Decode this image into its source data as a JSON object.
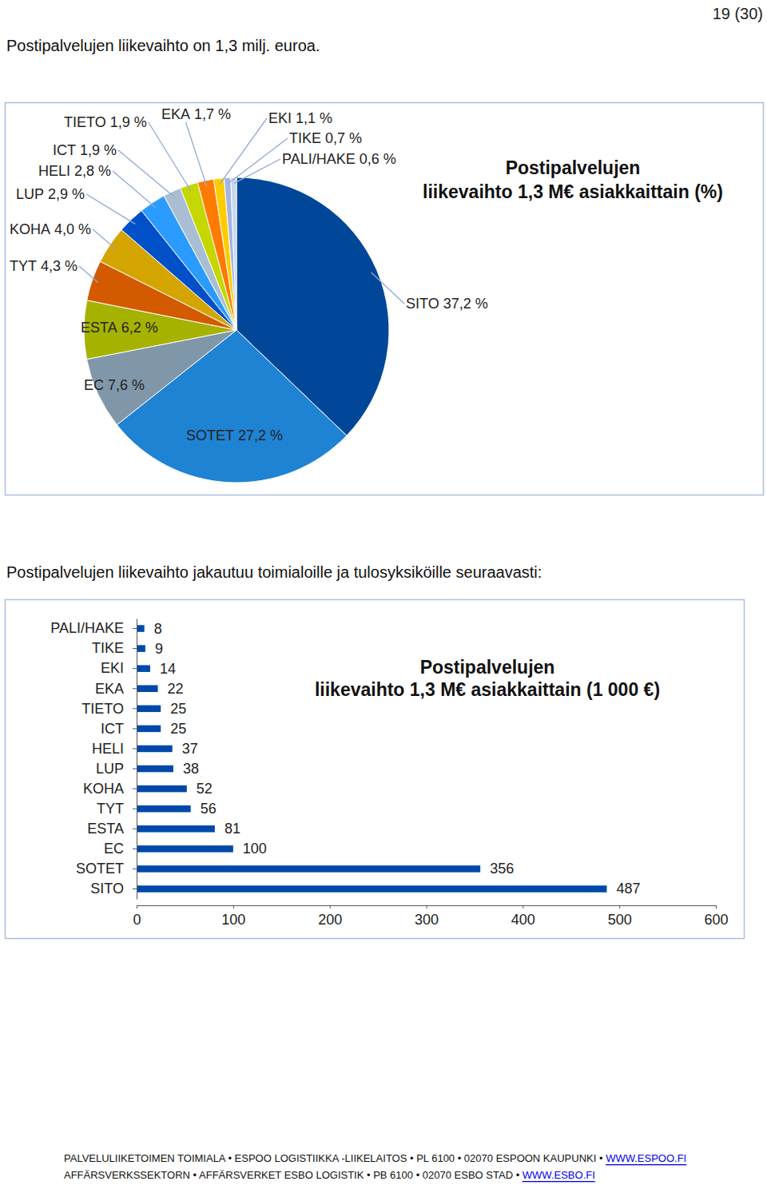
{
  "page": {
    "number": "19 (30)",
    "intro": "Postipalvelujen liikevaihto on 1,3 milj. euroa.",
    "text": "Postipalvelujen liikevaihto jakautuu toimialoille ja tulosyksiköille seuraavasti:",
    "footer": [
      {
        "text": "PALVELULIIKETOIMEN TOIMIALA • ESPOO LOGISTIIKKA -LIIKELAITOS • PL 6100 • 02070 ESPOON KAUPUNKI •",
        "link": "WWW.ESPOO.FI"
      },
      {
        "text": "AFFÄRSVERKSSEKTORN • AFFÄRSVERKET ESBO LOGISTIK • PB 6100 • 02070 ESBO STAD •",
        "link": "WWW.ESBO.FI"
      }
    ]
  },
  "chart_data": [
    {
      "type": "pie",
      "title": "Postipalvelujen liikevaihto 1,3 M€ asiakkaittain (%)",
      "categories": [
        "SITO",
        "SOTET",
        "EC",
        "ESTA",
        "TYT",
        "KOHA",
        "LUP",
        "HELI",
        "ICT",
        "TIETO",
        "EKA",
        "EKI",
        "TIKE",
        "PALI/HAKE"
      ],
      "values": [
        37.2,
        27.2,
        7.6,
        6.2,
        4.3,
        4.0,
        2.9,
        2.8,
        1.9,
        1.9,
        1.7,
        1.1,
        0.7,
        0.6
      ],
      "value_labels": [
        "37,2 %",
        "27,2 %",
        "7,6 %",
        "6,2 %",
        "4,3 %",
        "4,0 %",
        "2,9 %",
        "2,8 %",
        "1,9 %",
        "1,9 %",
        "1,7 %",
        "1,1 %",
        "0,7 %",
        "0,6 %"
      ],
      "colors": [
        "#00479a",
        "#1f83d4",
        "#8097a9",
        "#a5b300",
        "#d45a00",
        "#d4a500",
        "#0050c8",
        "#2b9bff",
        "#a9bed2",
        "#c5d600",
        "#ff7a00",
        "#ffcc00",
        "#a3b5e3",
        "#cad6ea"
      ],
      "data_labels": true
    },
    {
      "type": "bar",
      "orientation": "horizontal",
      "title": "Postipalvelujen liikevaihto 1,3 M€ asiakkaittain (1 000 €)",
      "categories": [
        "PALI/HAKE",
        "TIKE",
        "EKI",
        "EKA",
        "TIETO",
        "ICT",
        "HELI",
        "LUP",
        "KOHA",
        "TYT",
        "ESTA",
        "EC",
        "SOTET",
        "SITO"
      ],
      "values": [
        8,
        9,
        14,
        22,
        25,
        25,
        37,
        38,
        52,
        56,
        81,
        100,
        356,
        487
      ],
      "color": "#0049a8",
      "xlim": [
        0,
        600
      ],
      "xticks": [
        0,
        100,
        200,
        300,
        400,
        500,
        600
      ],
      "grid": false,
      "data_labels": true
    }
  ]
}
